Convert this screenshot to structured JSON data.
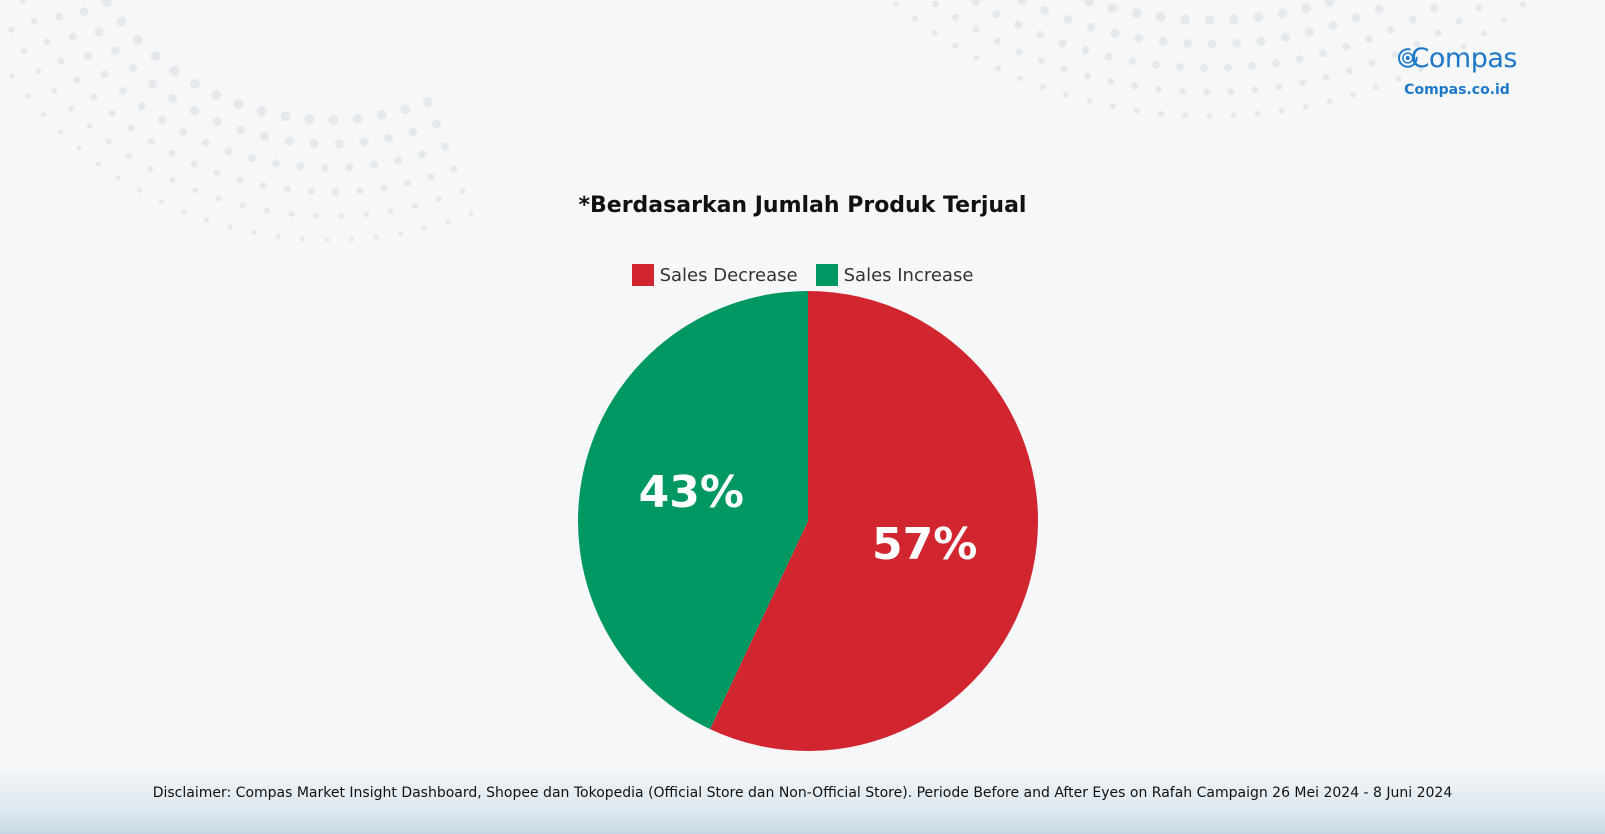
{
  "brand": {
    "name": "Compas",
    "site": "Compas.co.id",
    "color": "#1e78c8"
  },
  "chart_data": {
    "type": "pie",
    "title": "*Berdasarkan Jumlah Produk Terjual",
    "legend_position": "top-center",
    "slices": [
      {
        "name": "Sales Decrease",
        "value": 57,
        "label": "57%",
        "color": "#d12530"
      },
      {
        "name": "Sales Increase",
        "value": 43,
        "label": "43%",
        "color": "#009862"
      }
    ]
  },
  "footer": {
    "disclaimer": "Disclaimer: Compas Market Insight Dashboard, Shopee dan Tokopedia (Official Store dan Non-Official Store). Periode Before and After Eyes on Rafah Campaign 26 Mei 2024 - 8 Juni 2024"
  }
}
